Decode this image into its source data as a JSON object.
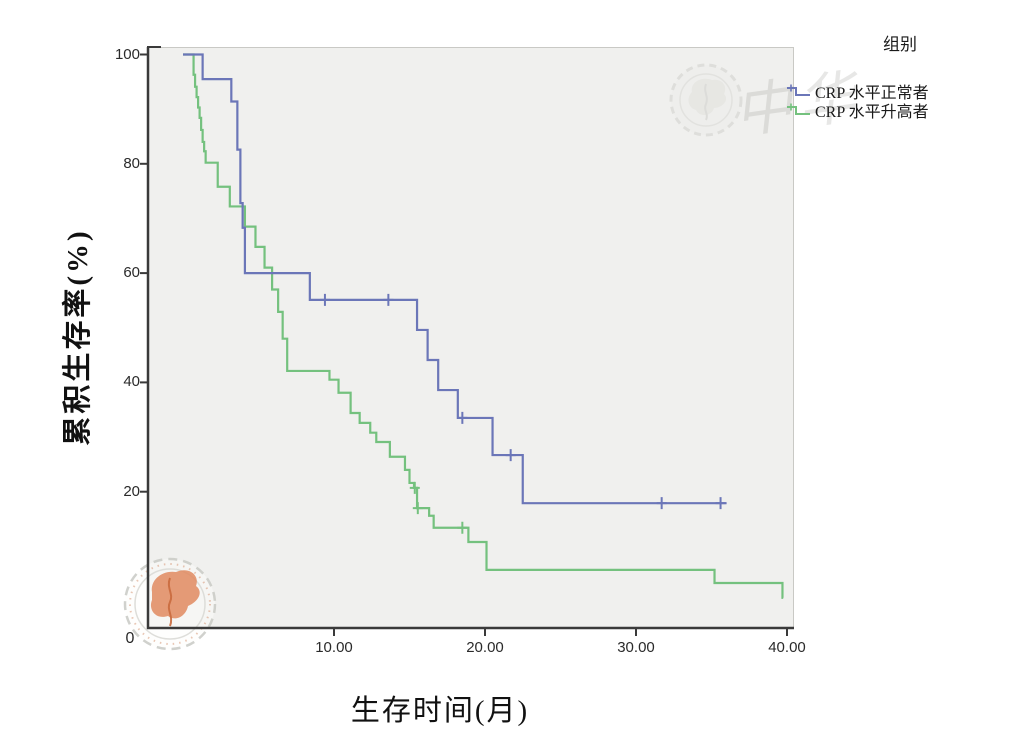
{
  "figure": {
    "background": "#ffffff",
    "legend": {
      "title": "组别",
      "items": [
        {
          "label": "CRP 水平正常者"
        },
        {
          "label": "CRP 水平升高者"
        }
      ]
    },
    "watermarks": {
      "script_text": "中华",
      "top_seal": "scalloped-round-seal-embossed",
      "bottom_seal": "scalloped-round-seal-orange-emblem"
    }
  },
  "chart_data": {
    "type": "line",
    "subtype": "kaplan-meier-survival-step",
    "title": "",
    "xlabel": "生存时间(月)",
    "ylabel": "累积生存率(%)",
    "xlim": [
      0,
      40
    ],
    "ylim": [
      0,
      100
    ],
    "grid": false,
    "legend_position": "outside-top-right",
    "x_origin_label": "0",
    "xticks": [
      {
        "value": 10,
        "label": "10.00"
      },
      {
        "value": 20,
        "label": "20.00"
      },
      {
        "value": 30,
        "label": "30.00"
      },
      {
        "value": 40,
        "label": "40.00"
      }
    ],
    "yticks": [
      {
        "value": 100,
        "label": "100"
      },
      {
        "value": 80,
        "label": "80"
      },
      {
        "value": 60,
        "label": "60"
      },
      {
        "value": 40,
        "label": "40"
      },
      {
        "value": 20,
        "label": "20"
      }
    ],
    "colors": {
      "axis": "#3a3a3a",
      "plot_background": "#f0f0ee",
      "normal_crp": "#6b76b8",
      "elevated_crp": "#74c17e",
      "seal_orange": "#e18a5f"
    },
    "series": [
      {
        "name": "CRP 水平正常者",
        "color": "#6b76b8",
        "x_end": 36.0,
        "steps": [
          [
            0,
            100
          ],
          [
            1.3,
            95.5
          ],
          [
            3.2,
            91.4
          ],
          [
            3.6,
            82.6
          ],
          [
            3.8,
            72.8
          ],
          [
            3.95,
            68.3
          ],
          [
            4.1,
            60.0
          ],
          [
            8.4,
            55.1
          ],
          [
            15.5,
            49.6
          ],
          [
            16.2,
            44.1
          ],
          [
            16.9,
            38.6
          ],
          [
            18.2,
            33.5
          ],
          [
            20.5,
            26.7
          ],
          [
            22.5,
            17.9
          ]
        ],
        "censored": [
          [
            9.4,
            55.1
          ],
          [
            13.6,
            55.1
          ],
          [
            18.5,
            33.5
          ],
          [
            21.7,
            26.7
          ],
          [
            31.7,
            17.9
          ],
          [
            35.6,
            17.9
          ]
        ]
      },
      {
        "name": "CRP 水平升高者",
        "color": "#74c17e",
        "x_end": 39.75,
        "steps": [
          [
            0,
            100
          ],
          [
            0.7,
            96.3
          ],
          [
            0.8,
            94.1
          ],
          [
            0.9,
            92.2
          ],
          [
            1.0,
            90.3
          ],
          [
            1.1,
            88.4
          ],
          [
            1.2,
            86.2
          ],
          [
            1.3,
            84.0
          ],
          [
            1.4,
            82.3
          ],
          [
            1.5,
            80.2
          ],
          [
            2.3,
            75.8
          ],
          [
            3.1,
            72.2
          ],
          [
            4.1,
            68.5
          ],
          [
            4.8,
            64.8
          ],
          [
            5.4,
            61.0
          ],
          [
            5.9,
            57.0
          ],
          [
            6.3,
            52.9
          ],
          [
            6.6,
            48.0
          ],
          [
            6.9,
            42.1
          ],
          [
            9.7,
            40.5
          ],
          [
            10.3,
            38.1
          ],
          [
            11.1,
            34.4
          ],
          [
            11.7,
            32.6
          ],
          [
            12.4,
            30.8
          ],
          [
            12.8,
            29.1
          ],
          [
            13.7,
            26.4
          ],
          [
            14.7,
            24.0
          ],
          [
            15.0,
            21.6
          ],
          [
            15.3,
            20.7
          ],
          [
            15.5,
            17.0
          ],
          [
            16.3,
            15.6
          ],
          [
            16.6,
            13.4
          ],
          [
            18.9,
            10.8
          ],
          [
            20.1,
            5.7
          ],
          [
            35.2,
            3.3
          ],
          [
            39.7,
            0.6
          ]
        ],
        "censored": [
          [
            15.35,
            20.7
          ],
          [
            15.55,
            17.0
          ],
          [
            18.5,
            13.4
          ]
        ]
      }
    ]
  }
}
